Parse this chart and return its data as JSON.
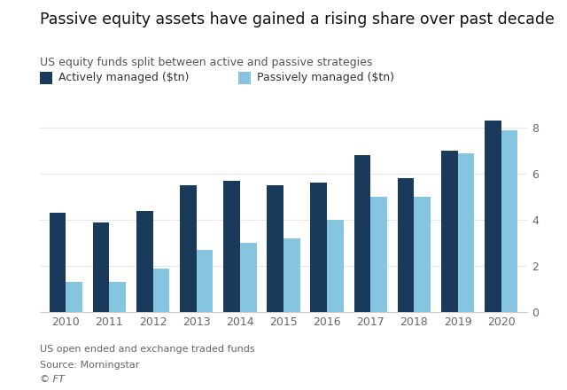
{
  "title": "Passive equity assets have gained a rising share over past decade",
  "subtitle": "US equity funds split between active and passive strategies",
  "years": [
    2010,
    2011,
    2012,
    2013,
    2014,
    2015,
    2016,
    2017,
    2018,
    2019,
    2020
  ],
  "active": [
    4.3,
    3.9,
    4.4,
    5.5,
    5.7,
    5.5,
    5.6,
    6.8,
    5.8,
    7.0,
    8.3
  ],
  "passive": [
    1.3,
    1.3,
    1.9,
    2.7,
    3.0,
    3.2,
    4.0,
    5.0,
    5.0,
    6.9,
    7.9
  ],
  "active_color": "#1a3a5c",
  "passive_color": "#85c5e0",
  "legend_active": "Actively managed ($tn)",
  "legend_passive": "Passively managed ($tn)",
  "ylim": [
    0,
    8.8
  ],
  "yticks": [
    0,
    2,
    4,
    6,
    8
  ],
  "footnote1": "US open ended and exchange traded funds",
  "footnote2": "Source: Morningstar",
  "footnote3": "© FT",
  "bg_color": "#ffffff",
  "grid_color": "#e8e8e8",
  "title_fontsize": 12.5,
  "subtitle_fontsize": 9,
  "axis_fontsize": 9,
  "legend_fontsize": 9,
  "footnote_fontsize": 8,
  "bar_width": 0.38
}
